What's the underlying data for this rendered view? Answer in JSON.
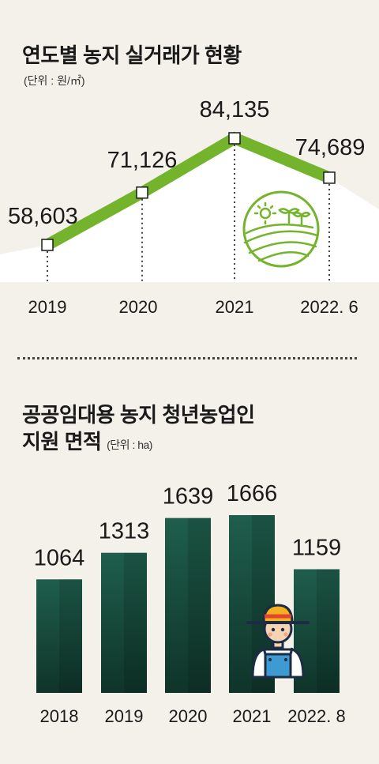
{
  "chart_data": [
    {
      "type": "area",
      "title": "연도별 농지 실거래가 현황",
      "unit": "(단위 : 원/㎡)",
      "categories": [
        "2019",
        "2020",
        "2021",
        "2022. 6"
      ],
      "values": [
        58603,
        71126,
        84135,
        74689
      ],
      "value_labels": [
        "58,603",
        "71,126",
        "84,135",
        "74,689"
      ],
      "colors": {
        "line": "#74b42d",
        "area": "#ffffff",
        "marker": "#ffffff"
      }
    },
    {
      "type": "bar",
      "title": "공공임대용 농지 청년농업인 지원 면적",
      "title_lines": [
        "공공임대용 농지 청년농업인",
        "지원 면적"
      ],
      "unit": "(단위 : ha)",
      "categories": [
        "2018",
        "2019",
        "2020",
        "2021",
        "2022. 8"
      ],
      "values": [
        1064,
        1313,
        1639,
        1666,
        1159
      ],
      "colors": {
        "bar_top": "#1f5e4c",
        "bar_bottom": "#113a2e"
      }
    }
  ],
  "icons": [
    "farm-field-icon",
    "farmer-icon"
  ]
}
